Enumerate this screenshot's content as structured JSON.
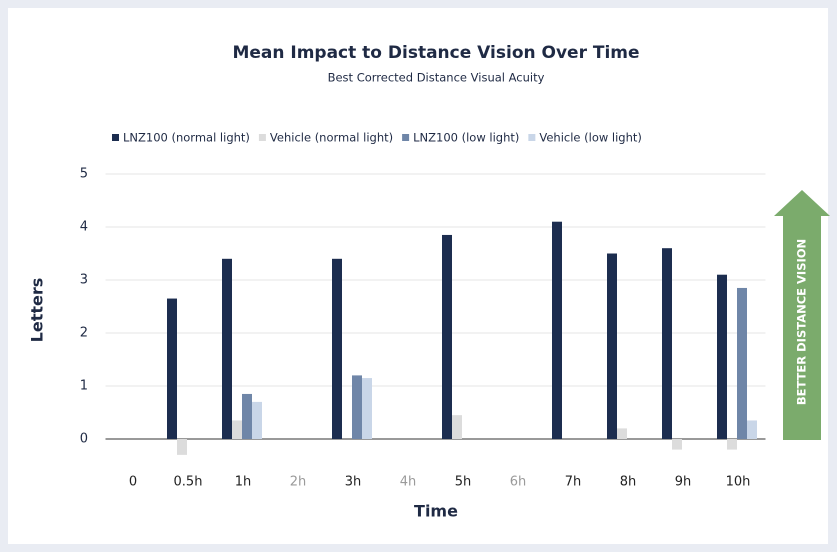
{
  "chart_data": {
    "type": "bar",
    "title": "Mean Impact to Distance Vision Over Time",
    "subtitle": "Best Corrected Distance Visual Acuity",
    "y_label": "Letters",
    "x_label": "Time",
    "annotation": "BETTER DISTANCE VISION",
    "categories": [
      "0",
      "0.5h",
      "1h",
      "2h",
      "3h",
      "4h",
      "5h",
      "6h",
      "7h",
      "8h",
      "9h",
      "10h"
    ],
    "tick_label_colors": [
      "#222222",
      "#222222",
      "#222222",
      "#9a9a9a",
      "#222222",
      "#9a9a9a",
      "#222222",
      "#9a9a9a",
      "#222222",
      "#222222",
      "#222222",
      "#222222"
    ],
    "series": [
      {
        "name": "LNZ100 (normal light)",
        "color": "#1c2d4f",
        "values": [
          null,
          2.65,
          3.4,
          null,
          3.4,
          null,
          3.85,
          null,
          4.1,
          3.5,
          3.6,
          3.1
        ]
      },
      {
        "name": "Vehicle (normal light)",
        "color": "#dcdcdc",
        "values": [
          null,
          -0.3,
          0.35,
          null,
          null,
          null,
          0.45,
          null,
          null,
          0.2,
          -0.2,
          -0.2
        ]
      },
      {
        "name": "LNZ100 (low light)",
        "color": "#6f86a8",
        "values": [
          null,
          null,
          0.85,
          null,
          1.2,
          null,
          null,
          null,
          null,
          null,
          null,
          2.85
        ]
      },
      {
        "name": "Vehicle (low light)",
        "color": "#c9d6e8",
        "values": [
          null,
          null,
          0.7,
          null,
          1.15,
          null,
          null,
          null,
          null,
          null,
          null,
          0.35
        ]
      }
    ],
    "ylim": [
      0,
      5
    ],
    "yticks": [
      0,
      1,
      2,
      3,
      4,
      5
    ],
    "grid": true,
    "legend": "top"
  }
}
